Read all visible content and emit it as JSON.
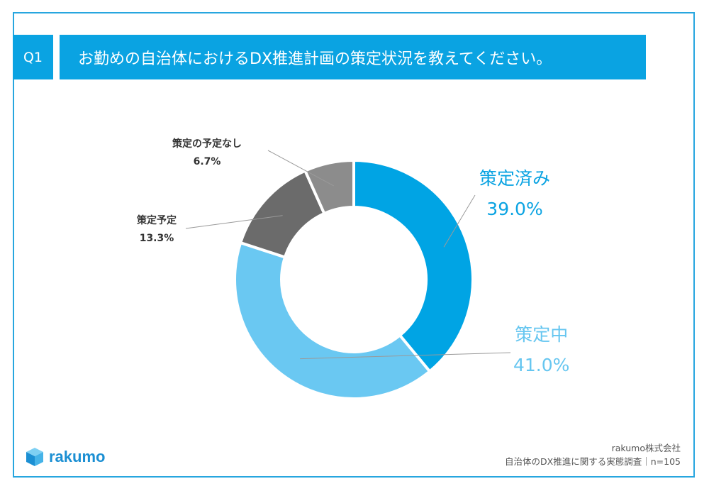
{
  "header": {
    "badge": "Q1",
    "question": "お勤めの自治体におけるDX推進計画の策定状況を教えてください。"
  },
  "chart_data": {
    "type": "pie",
    "donut": true,
    "slices": [
      {
        "label": "策定済み",
        "value": 39.0,
        "value_label": "39.0%",
        "color": "#00a4e4"
      },
      {
        "label": "策定中",
        "value": 41.0,
        "value_label": "41.0%",
        "color": "#6ac8f2"
      },
      {
        "label": "策定予定",
        "value": 13.3,
        "value_label": "13.3%",
        "color": "#6b6b6b"
      },
      {
        "label": "策定の予定なし",
        "value": 6.7,
        "value_label": "6.7%",
        "color": "#8c8c8c"
      }
    ]
  },
  "footer": {
    "company": "rakumo株式会社",
    "survey": "自治体のDX推進に関する実態調査｜n=105"
  },
  "logo": {
    "text": "rakumo",
    "icon": "cube-logo-icon"
  }
}
